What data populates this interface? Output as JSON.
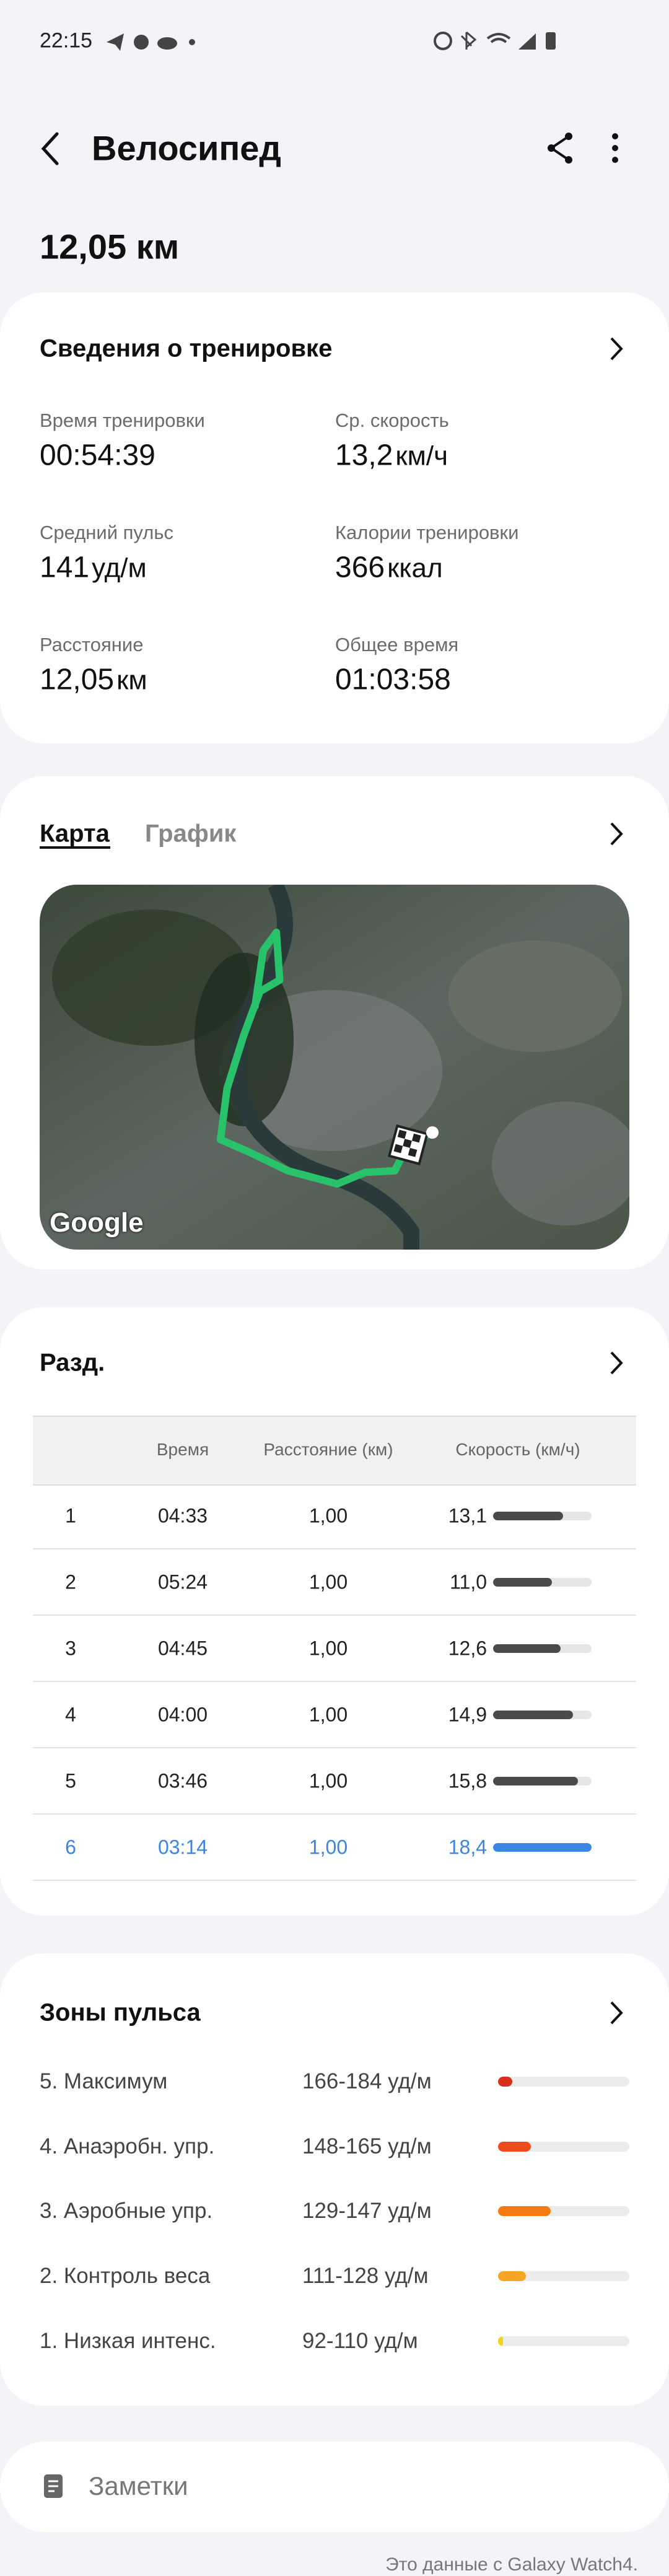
{
  "status_bar": {
    "time": "22:15"
  },
  "header": {
    "title": "Велосипед",
    "distance": "12,05 км"
  },
  "summary": {
    "title": "Сведения о тренировке",
    "stats": [
      {
        "label": "Время тренировки",
        "value": "00:54:39"
      },
      {
        "label": "Ср. скорость",
        "value": "13,2",
        "unit": "км/ч"
      },
      {
        "label": "Средний пульс",
        "value": "141",
        "unit": "уд/м"
      },
      {
        "label": "Калории тренировки",
        "value": "366",
        "unit": "ккал"
      },
      {
        "label": "Расстояние",
        "value": "12,05",
        "unit": "км"
      },
      {
        "label": "Общее время",
        "value": "01:03:58"
      }
    ]
  },
  "route": {
    "tabs": [
      "Карта",
      "График"
    ],
    "map_attribution": "Google"
  },
  "splits": {
    "title": "Разд.",
    "columns": [
      "Время",
      "Расстояние (км)",
      "Скорость (км/ч)"
    ],
    "bar_color": "#4a4a4a",
    "highlight_color": "#3a86e2",
    "rows": [
      {
        "index": 1,
        "time": "04:33",
        "distance": "1,00",
        "speed": 13.1,
        "speed_label": "13,1"
      },
      {
        "index": 2,
        "time": "05:24",
        "distance": "1,00",
        "speed": 11.0,
        "speed_label": "11,0"
      },
      {
        "index": 3,
        "time": "04:45",
        "distance": "1,00",
        "speed": 12.6,
        "speed_label": "12,6"
      },
      {
        "index": 4,
        "time": "04:00",
        "distance": "1,00",
        "speed": 14.9,
        "speed_label": "14,9"
      },
      {
        "index": 5,
        "time": "03:46",
        "distance": "1,00",
        "speed": 15.8,
        "speed_label": "15,8"
      },
      {
        "index": 6,
        "time": "03:14",
        "distance": "1,00",
        "speed": 18.4,
        "speed_label": "18,4"
      }
    ]
  },
  "zones": {
    "title": "Зоны пульса",
    "xlim": [
      0,
      100
    ],
    "rows": [
      {
        "name": "5. Максимум",
        "range": "166-184 уд/м",
        "share": 11,
        "color": "#d9301c"
      },
      {
        "name": "4. Анаэробн. упр.",
        "range": "148-165 уд/м",
        "share": 25,
        "color": "#f04b1d"
      },
      {
        "name": "3. Аэробные упр.",
        "range": "129-147 уд/м",
        "share": 40,
        "color": "#f57a12"
      },
      {
        "name": "2. Контроль веса",
        "range": "111-128 уд/м",
        "share": 21,
        "color": "#f5a524"
      },
      {
        "name": "1. Низкая интенс.",
        "range": "92-110 уд/м",
        "share": 4,
        "color": "#f2d31b"
      }
    ]
  },
  "notes": {
    "label": "Заметки"
  },
  "footer": "Это данные с Galaxy Watch4."
}
